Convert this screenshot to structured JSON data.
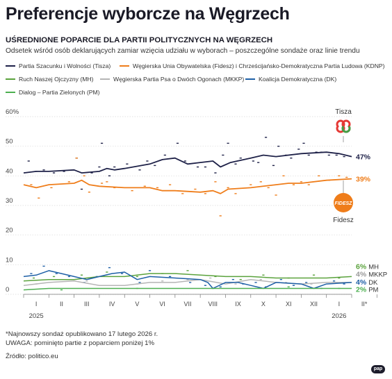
{
  "title": "Preferencje wyborcze na Węgrzech",
  "subtitle": "UŚREDNIONE POPARCIE DLA PARTII POLITYCZNYCH NA WĘGRZECH",
  "description": "Odsetek wśród osób deklarujących zamiar wzięcia udziału w wyborach – poszczególne sondaże oraz linie trendu",
  "legend": [
    {
      "label": "Partia Szacunku i Wolności (Tisza)",
      "color": "#1e2148"
    },
    {
      "label": "Węgierska Unia Obywatelska (Fidesz) i Chrześcijańsko-Demokratyczna Partia Ludowa (KDNP)",
      "color": "#ef7d1a"
    },
    {
      "label": "Ruch Naszej Ojczyzny (MH)",
      "color": "#5aa23c"
    },
    {
      "label": "Węgierska Partia Psa o Dwóch Ogonach (MKKP)",
      "color": "#b5b5b5"
    },
    {
      "label": "Koalicja Demokratyczna (DK)",
      "color": "#1d5fa6"
    },
    {
      "label": "Dialog – Partia Zielonych (PM)",
      "color": "#4caf50"
    }
  ],
  "logos": {
    "tisza": "Tisza",
    "fidesz_label": "Fidesz",
    "fidesz_badge": "FIDESZ"
  },
  "chart_data": {
    "type": "line",
    "y_ticks": [
      "0",
      "10",
      "20",
      "30",
      "40",
      "50",
      "60%"
    ],
    "ylim": [
      0,
      60
    ],
    "x_range": [
      0,
      13
    ],
    "months": [
      "I",
      "II",
      "III",
      "IV",
      "V",
      "VI",
      "VII",
      "VIII",
      "IX",
      "X",
      "XI",
      "XII",
      "I",
      "II*"
    ],
    "year_labels": [
      {
        "label": "2025",
        "x": 0.5
      },
      {
        "label": "2026",
        "x": 12.5
      }
    ],
    "series": [
      {
        "name": "Tisza",
        "color": "#1e2148",
        "end_label": "47%",
        "trend": [
          [
            0,
            41
          ],
          [
            0.5,
            41.5
          ],
          [
            1,
            41.5
          ],
          [
            2,
            42
          ],
          [
            2.3,
            41
          ],
          [
            3,
            41.5
          ],
          [
            3.3,
            42.5
          ],
          [
            3.6,
            42
          ],
          [
            4,
            42.5
          ],
          [
            5,
            44
          ],
          [
            5.5,
            45.5
          ],
          [
            6,
            46
          ],
          [
            6.5,
            44
          ],
          [
            7,
            44.5
          ],
          [
            7.5,
            45
          ],
          [
            7.8,
            43
          ],
          [
            8.2,
            44.5
          ],
          [
            9,
            46
          ],
          [
            9.5,
            47
          ],
          [
            10,
            46.5
          ],
          [
            11,
            47.5
          ],
          [
            12,
            48
          ],
          [
            12.5,
            47.5
          ],
          [
            13,
            46.5
          ]
        ],
        "polls": [
          [
            0.2,
            45
          ],
          [
            0.5,
            41.5
          ],
          [
            0.8,
            42
          ],
          [
            1.2,
            41
          ],
          [
            1.6,
            41.5
          ],
          [
            2.1,
            46
          ],
          [
            2.3,
            35.5
          ],
          [
            2.7,
            41
          ],
          [
            3.0,
            43
          ],
          [
            3.1,
            51
          ],
          [
            3.4,
            40
          ],
          [
            3.6,
            43
          ],
          [
            4.1,
            44
          ],
          [
            4.6,
            42
          ],
          [
            4.9,
            45
          ],
          [
            5.2,
            43.5
          ],
          [
            5.6,
            47
          ],
          [
            6.1,
            51
          ],
          [
            6.4,
            45
          ],
          [
            6.9,
            43
          ],
          [
            7.2,
            43
          ],
          [
            7.6,
            41
          ],
          [
            7.9,
            47
          ],
          [
            8.1,
            51
          ],
          [
            8.4,
            44
          ],
          [
            8.6,
            46
          ],
          [
            9.1,
            45
          ],
          [
            9.3,
            44.5
          ],
          [
            9.6,
            53
          ],
          [
            9.9,
            43.5
          ],
          [
            10.1,
            50
          ],
          [
            10.4,
            47
          ],
          [
            10.6,
            46
          ],
          [
            10.9,
            49
          ],
          [
            11.1,
            51
          ],
          [
            11.3,
            47
          ],
          [
            11.6,
            48
          ],
          [
            11.8,
            48
          ],
          [
            12.1,
            47
          ],
          [
            12.4,
            47
          ],
          [
            12.7,
            46.5
          ]
        ]
      },
      {
        "name": "Fidesz",
        "color": "#ef7d1a",
        "end_label": "39%",
        "trend": [
          [
            0,
            37
          ],
          [
            0.5,
            36
          ],
          [
            1,
            37
          ],
          [
            2,
            37.5
          ],
          [
            2.3,
            38.5
          ],
          [
            2.6,
            37
          ],
          [
            3,
            36.5
          ],
          [
            4,
            36
          ],
          [
            5,
            36
          ],
          [
            5.5,
            35
          ],
          [
            6,
            35
          ],
          [
            7,
            34.5
          ],
          [
            7.5,
            35
          ],
          [
            7.8,
            34
          ],
          [
            8.1,
            35.5
          ],
          [
            9,
            36
          ],
          [
            10,
            37
          ],
          [
            10.5,
            37.5
          ],
          [
            11,
            37.5
          ],
          [
            12,
            38.5
          ],
          [
            13,
            39
          ]
        ],
        "polls": [
          [
            0.3,
            37
          ],
          [
            0.6,
            32.5
          ],
          [
            1.1,
            36
          ],
          [
            1.8,
            38
          ],
          [
            2.1,
            46
          ],
          [
            2.4,
            40
          ],
          [
            2.6,
            34.5
          ],
          [
            3.1,
            37.5
          ],
          [
            3.3,
            38
          ],
          [
            3.6,
            36
          ],
          [
            4.3,
            35
          ],
          [
            4.8,
            36.5
          ],
          [
            5.3,
            36
          ],
          [
            5.8,
            37
          ],
          [
            6.3,
            34
          ],
          [
            6.8,
            35.5
          ],
          [
            7.2,
            34
          ],
          [
            7.6,
            38
          ],
          [
            7.8,
            26.5
          ],
          [
            8.1,
            36
          ],
          [
            8.4,
            34
          ],
          [
            9.0,
            37
          ],
          [
            9.4,
            38
          ],
          [
            9.7,
            36
          ],
          [
            10.0,
            33.5
          ],
          [
            10.3,
            40
          ],
          [
            10.7,
            37
          ],
          [
            11.0,
            38
          ],
          [
            11.3,
            37
          ],
          [
            11.7,
            40
          ],
          [
            12.1,
            38.5
          ],
          [
            12.5,
            40
          ],
          [
            12.8,
            39.5
          ]
        ]
      },
      {
        "name": "MH",
        "color": "#5aa23c",
        "end_label": "6%",
        "trend": [
          [
            0,
            4.5
          ],
          [
            1,
            5
          ],
          [
            2,
            5
          ],
          [
            3,
            6
          ],
          [
            4,
            6
          ],
          [
            5,
            7
          ],
          [
            6,
            7
          ],
          [
            7,
            6.5
          ],
          [
            8,
            6
          ],
          [
            9,
            6
          ],
          [
            10,
            5.5
          ],
          [
            11,
            5.5
          ],
          [
            12,
            5.5
          ],
          [
            13,
            6
          ]
        ],
        "polls": [
          [
            0.4,
            5.5
          ],
          [
            1.2,
            6
          ],
          [
            2.3,
            6.5
          ],
          [
            3.3,
            7.5
          ],
          [
            4.5,
            6
          ],
          [
            5.5,
            7
          ],
          [
            6.5,
            8
          ],
          [
            7.6,
            6
          ],
          [
            8.6,
            5
          ],
          [
            9.5,
            6.5
          ],
          [
            10.5,
            5.5
          ],
          [
            11.5,
            6.5
          ],
          [
            12.5,
            5.5
          ]
        ]
      },
      {
        "name": "MKKP",
        "color": "#b5b5b5",
        "end_label": "4%",
        "trend": [
          [
            0,
            3
          ],
          [
            1,
            4
          ],
          [
            2,
            4.5
          ],
          [
            3,
            3
          ],
          [
            4,
            3
          ],
          [
            5,
            4
          ],
          [
            6,
            4
          ],
          [
            7,
            5
          ],
          [
            8,
            3.5
          ],
          [
            9,
            5
          ],
          [
            10,
            4
          ],
          [
            11,
            3.5
          ],
          [
            12,
            4
          ],
          [
            13,
            4
          ]
        ],
        "polls": [
          [
            0.5,
            3.5
          ],
          [
            1.5,
            5
          ],
          [
            2.5,
            4.5
          ],
          [
            3.5,
            3
          ],
          [
            4.5,
            3.5
          ],
          [
            5.5,
            4.5
          ],
          [
            6.5,
            5
          ],
          [
            7.4,
            5.5
          ],
          [
            8.4,
            3.5
          ],
          [
            9.4,
            5
          ],
          [
            10.4,
            4
          ],
          [
            11.4,
            3.5
          ],
          [
            12.4,
            4
          ]
        ]
      },
      {
        "name": "DK",
        "color": "#1d5fa6",
        "end_label": "4%",
        "trend": [
          [
            0,
            6
          ],
          [
            0.5,
            6.5
          ],
          [
            1,
            8
          ],
          [
            1.5,
            7
          ],
          [
            2,
            6
          ],
          [
            2.5,
            5
          ],
          [
            3,
            6
          ],
          [
            3.5,
            7
          ],
          [
            4,
            7.5
          ],
          [
            4.5,
            5
          ],
          [
            5,
            6
          ],
          [
            6,
            5.5
          ],
          [
            7,
            5
          ],
          [
            7.3,
            4
          ],
          [
            7.5,
            2
          ],
          [
            8,
            4
          ],
          [
            8.5,
            4
          ],
          [
            9,
            3
          ],
          [
            9.5,
            2
          ],
          [
            10,
            4
          ],
          [
            11,
            3.5
          ],
          [
            11.5,
            2
          ],
          [
            12,
            3.5
          ],
          [
            13,
            4
          ]
        ],
        "polls": [
          [
            0.3,
            7
          ],
          [
            0.8,
            9.5
          ],
          [
            1.3,
            7
          ],
          [
            1.8,
            6
          ],
          [
            2.4,
            4
          ],
          [
            2.9,
            6
          ],
          [
            3.4,
            9
          ],
          [
            3.9,
            7
          ],
          [
            4.6,
            4
          ],
          [
            5.0,
            8
          ],
          [
            5.8,
            6
          ],
          [
            6.6,
            4
          ],
          [
            7.2,
            3
          ],
          [
            7.8,
            2.5
          ],
          [
            8.3,
            5
          ],
          [
            8.7,
            3.5
          ],
          [
            9.2,
            4
          ],
          [
            9.6,
            2.5
          ],
          [
            10.2,
            5
          ],
          [
            10.7,
            3
          ],
          [
            11.2,
            4
          ],
          [
            11.8,
            2
          ],
          [
            12.3,
            4.5
          ],
          [
            12.7,
            3.5
          ]
        ]
      },
      {
        "name": "PM",
        "color": "#4caf50",
        "end_label": "2%",
        "trend": [
          [
            0,
            1.5
          ],
          [
            1,
            2
          ],
          [
            2,
            2
          ],
          [
            3,
            2
          ],
          [
            4,
            2
          ],
          [
            5,
            2
          ],
          [
            6,
            2
          ],
          [
            7,
            2
          ],
          [
            8,
            2
          ],
          [
            9,
            2
          ],
          [
            10,
            2
          ],
          [
            11,
            2
          ],
          [
            12,
            2
          ],
          [
            13,
            2
          ]
        ],
        "polls": [
          [
            1.5,
            1.5
          ],
          [
            4.5,
            2
          ],
          [
            7.5,
            2
          ],
          [
            10.5,
            2.5
          ],
          [
            12.5,
            2
          ]
        ]
      }
    ],
    "end_label_names": [
      "MH",
      "MKKP",
      "DK",
      "PM"
    ]
  },
  "footnotes": [
    "*Najnowszy sondaż opublikowano 17 lutego 2026 r.",
    "UWAGA: pominięto partie z poparciem poniżej 1%",
    "Źródło: politico.eu"
  ],
  "brand": "pap"
}
